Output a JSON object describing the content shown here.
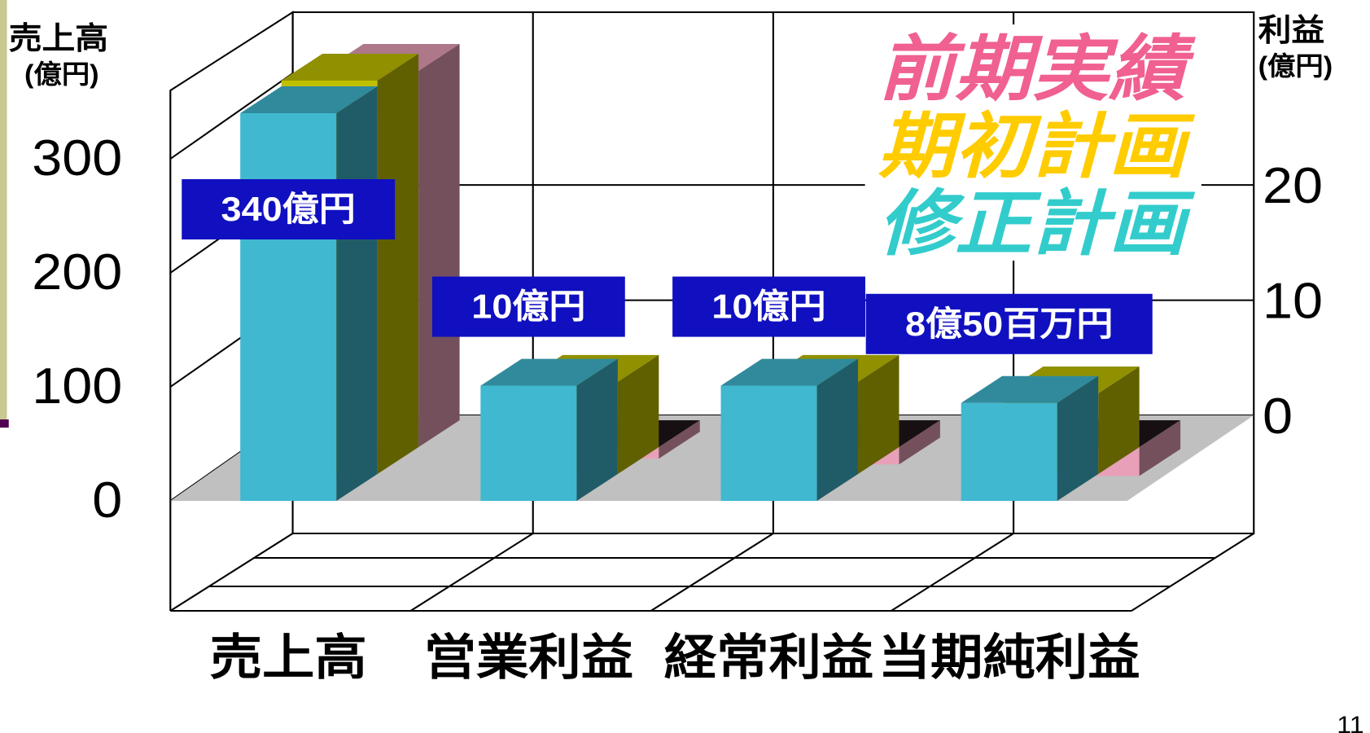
{
  "chart_data": {
    "type": "bar3d",
    "categories": [
      "売上高",
      "営業利益",
      "経常利益",
      "当期純利益"
    ],
    "category_axes": [
      "y",
      "y2",
      "y2",
      "y2"
    ],
    "series": [
      {
        "name": "前期実績",
        "color": "#e8a0b8",
        "legend_color": "#f06090",
        "values": [
          330,
          -1,
          -1.5,
          -2.5
        ]
      },
      {
        "name": "期初計画",
        "color": "#c0c000",
        "legend_color": "#ffcc00",
        "values": [
          345,
          8,
          8,
          7
        ]
      },
      {
        "name": "修正計画",
        "color": "#40b8d0",
        "legend_color": "#33cccc",
        "values": [
          340,
          10,
          10,
          8.5
        ],
        "value_labels": [
          "340億円",
          "10億円",
          "10億円",
          "8億50百万円"
        ],
        "label_color": "#1010c0"
      }
    ],
    "y_label": [
      "売上高",
      "(億円)"
    ],
    "y2_label": [
      "利益",
      "(億円)"
    ],
    "ylim": [
      0,
      360
    ],
    "yticks": [
      0,
      100,
      200,
      300
    ],
    "y2lim": [
      0,
      35
    ],
    "y2ticks": [
      0,
      10,
      20
    ],
    "grid": true
  },
  "page_number": "11"
}
